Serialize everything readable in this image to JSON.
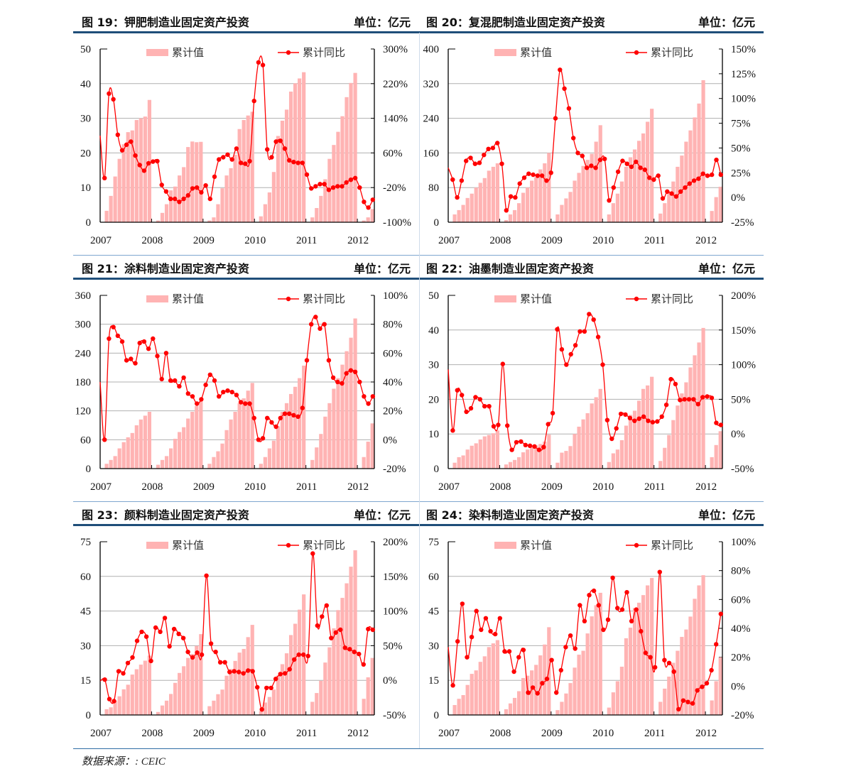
{
  "source": "数据来源：: CEIC",
  "chart_data": [
    {
      "type": "bar+line",
      "title": "图 19：钾肥制造业固定资产投资",
      "unit": "单位：亿元",
      "legend": [
        "累计值",
        "累计同比"
      ],
      "left_axis": {
        "min": 0,
        "max": 50,
        "ticks": [
          "0",
          "10",
          "20",
          "30",
          "40",
          "50"
        ]
      },
      "right_axis": {
        "min": -100,
        "max": 300,
        "ticks": [
          "-100%",
          "-20%",
          "60%",
          "140%",
          "220%",
          "300%"
        ]
      },
      "x_ticks": [
        "2007",
        "2008",
        "2009",
        "2010",
        "2011",
        "2012"
      ],
      "bar_values": {
        "2007": [
          3.3,
          7.6,
          13.2,
          18.3,
          22.5,
          26,
          26.5,
          29.5,
          30,
          30.5,
          35.3
        ],
        "2008": [
          0.5,
          2.7,
          5.2,
          9.2,
          10.3,
          13.5,
          15.9,
          21.7,
          23.3,
          23.1,
          23.2
        ],
        "2009": [
          0.5,
          1.4,
          5.2,
          9.8,
          13.5,
          15.6,
          19.5,
          26.9,
          29.5,
          30.8,
          31.9
        ],
        "2010": [
          1.7,
          5.2,
          8.6,
          14.5,
          24.9,
          29.3,
          32.5,
          37.7,
          40.1,
          41.5,
          43.3
        ],
        "2011": [
          1.4,
          4.1,
          7.6,
          12.4,
          18.3,
          22.3,
          26.1,
          30.6,
          36.1,
          40.2,
          43.1
        ],
        "2012": [
          0.5,
          1.4,
          3.8
        ]
      },
      "line_values": [
        100,
        2,
        197,
        184,
        102,
        66,
        79,
        86,
        54,
        32,
        19,
        36,
        40,
        41,
        -14,
        -29,
        -46,
        -46,
        -53,
        -46,
        -38,
        -22,
        -20,
        -31,
        -15,
        -46,
        5,
        45,
        50,
        56,
        45,
        70,
        37,
        35,
        41,
        180,
        269,
        263,
        68,
        50,
        86,
        88,
        70,
        43,
        39,
        37,
        37,
        10,
        -22,
        -17,
        -12,
        -12,
        -25,
        -20,
        -17,
        -17,
        -8,
        -2,
        2,
        -20,
        -53,
        -66,
        -48
      ]
    },
    {
      "type": "bar+line",
      "title": "图 20：复混肥制造业固定资产投资",
      "unit": "单位：亿元",
      "legend": [
        "累计值",
        "累计同比"
      ],
      "left_axis": {
        "min": 0,
        "max": 400,
        "ticks": [
          "0",
          "80",
          "160",
          "240",
          "320",
          "400"
        ]
      },
      "right_axis": {
        "min": -25,
        "max": 150,
        "ticks": [
          "-25%",
          "0%",
          "25%",
          "50%",
          "75%",
          "100%",
          "125%",
          "150%"
        ]
      },
      "x_ticks": [
        "2007",
        "2008",
        "2009",
        "2010",
        "2011",
        "2012"
      ],
      "bar_values": {
        "2007": [
          18,
          28,
          40,
          56,
          66,
          80,
          91,
          102,
          119,
          128,
          136
        ],
        "2008": [
          5,
          18,
          28,
          44,
          68,
          80,
          96,
          104,
          122,
          136,
          160
        ],
        "2009": [
          18,
          40,
          55,
          70,
          96,
          114,
          130,
          144,
          158,
          186,
          224
        ],
        "2010": [
          18,
          44,
          66,
          94,
          128,
          150,
          168,
          188,
          205,
          232,
          262
        ],
        "2011": [
          20,
          44,
          70,
          94,
          128,
          154,
          186,
          212,
          242,
          274,
          328
        ],
        "2012": [
          26,
          58,
          82
        ]
      },
      "line_values": [
        30,
        18,
        0,
        17,
        37,
        40,
        34,
        35,
        43,
        49,
        50,
        55,
        34,
        -13,
        1,
        0,
        14,
        20,
        24,
        23,
        22,
        22,
        17,
        25,
        80,
        129,
        110,
        90,
        60,
        45,
        42,
        30,
        32,
        30,
        38,
        39,
        -3,
        10,
        26,
        37,
        34,
        31,
        36,
        30,
        28,
        20,
        18,
        22,
        -1,
        6,
        4,
        1,
        6,
        10,
        14,
        17,
        19,
        24,
        22,
        23,
        38,
        23
      ]
    },
    {
      "type": "bar+line",
      "title": "图 21：涂料制造业固定资产投资",
      "unit": "单位：亿元",
      "legend": [
        "累计值",
        "累计同比"
      ],
      "left_axis": {
        "min": 0,
        "max": 360,
        "ticks": [
          "0",
          "60",
          "120",
          "180",
          "240",
          "300",
          "360"
        ]
      },
      "right_axis": {
        "min": -20,
        "max": 100,
        "ticks": [
          "-20%",
          "0%",
          "20%",
          "40%",
          "60%",
          "80%",
          "100%"
        ]
      },
      "x_ticks": [
        "2007",
        "2008",
        "2009",
        "2010",
        "2011",
        "2012"
      ],
      "bar_values": {
        "2007": [
          10,
          18,
          26,
          42,
          55,
          65,
          74,
          90,
          102,
          110,
          118
        ],
        "2008": [
          8,
          18,
          26,
          42,
          62,
          76,
          86,
          104,
          118,
          130,
          140
        ],
        "2009": [
          10,
          24,
          36,
          52,
          80,
          102,
          118,
          136,
          146,
          162,
          178
        ],
        "2010": [
          10,
          24,
          42,
          58,
          88,
          118,
          136,
          155,
          170,
          188,
          214
        ],
        "2011": [
          18,
          44,
          72,
          108,
          136,
          166,
          188,
          216,
          244,
          272,
          312
        ],
        "2012": [
          24,
          56,
          94
        ]
      },
      "line_values": [
        40,
        0,
        70,
        78,
        72,
        68,
        55,
        56,
        53,
        67,
        68,
        63,
        70,
        58,
        42,
        60,
        41,
        41,
        37,
        43,
        32,
        30,
        25,
        28,
        38,
        45,
        41,
        30,
        33,
        34,
        33,
        31,
        26,
        25,
        25,
        15,
        0,
        1,
        15,
        12,
        9,
        15,
        18,
        18,
        17,
        16,
        22,
        55,
        80,
        85,
        77,
        80,
        55,
        43,
        40,
        39,
        46,
        48,
        47,
        40,
        30,
        25,
        30
      ]
    },
    {
      "type": "bar+line",
      "title": "图 22：油墨制造业固定资产投资",
      "unit": "单位：亿元",
      "legend": [
        "累计值",
        "累计同比"
      ],
      "left_axis": {
        "min": 0,
        "max": 50,
        "ticks": [
          "0",
          "10",
          "20",
          "30",
          "40",
          "50"
        ]
      },
      "right_axis": {
        "min": -50,
        "max": 200,
        "ticks": [
          "-50%",
          "0%",
          "50%",
          "100%",
          "150%",
          "200%"
        ]
      },
      "x_ticks": [
        "2007",
        "2008",
        "2009",
        "2010",
        "2011",
        "2012"
      ],
      "bar_values": {
        "2007": [
          1.7,
          3.3,
          3.8,
          5.5,
          6.6,
          7.3,
          8.4,
          9.3,
          9.7,
          10.2,
          11
        ],
        "2008": [
          1.2,
          1.9,
          2.5,
          3.3,
          4.7,
          5.5,
          6.3,
          6.7,
          7.1,
          7.8,
          9.8
        ],
        "2009": [
          1.7,
          4.6,
          5.1,
          6.5,
          10,
          12.1,
          14.2,
          16,
          18.8,
          20.6,
          23
        ],
        "2010": [
          1.9,
          4.4,
          5.5,
          8.2,
          12.4,
          15.5,
          16.7,
          19.6,
          23,
          24,
          26.5
        ],
        "2011": [
          2.2,
          6,
          9.7,
          14,
          18.2,
          21.7,
          24.9,
          29.2,
          32.7,
          36.4,
          40.6
        ],
        "2012": [
          3.3,
          6.8,
          10.8
        ]
      },
      "line_values": [
        93,
        5,
        63,
        56,
        32,
        37,
        53,
        50,
        40,
        40,
        11,
        13,
        101,
        12,
        -23,
        -12,
        -11,
        -16,
        -17,
        -18,
        -23,
        -19,
        14,
        30,
        151,
        122,
        100,
        115,
        128,
        148,
        148,
        173,
        165,
        140,
        100,
        20,
        -7,
        8,
        29,
        28,
        23,
        19,
        22,
        25,
        19,
        17,
        18,
        25,
        42,
        79,
        72,
        49,
        50,
        50,
        50,
        43,
        53,
        54,
        52,
        16,
        13
      ]
    },
    {
      "type": "bar+line",
      "title": "图 23：颜料制造业固定资产投资",
      "unit": "单位：亿元",
      "legend": [
        "累计值",
        "累计同比"
      ],
      "left_axis": {
        "min": 0,
        "max": 75,
        "ticks": [
          "0",
          "15",
          "30",
          "45",
          "60",
          "75"
        ]
      },
      "right_axis": {
        "min": -50,
        "max": 200,
        "ticks": [
          "-50%",
          "0%",
          "50%",
          "100%",
          "150%",
          "200%"
        ]
      },
      "x_ticks": [
        "2007",
        "2008",
        "2009",
        "2010",
        "2011",
        "2012"
      ],
      "bar_values": {
        "2007": [
          2.5,
          3.3,
          6.1,
          8.1,
          11.1,
          13.1,
          17.5,
          19.8,
          21.8,
          23.5,
          25.7
        ],
        "2008": [
          1.3,
          4.1,
          6.2,
          9.1,
          13.9,
          18.2,
          21.1,
          24.7,
          26.4,
          29.9,
          35
        ],
        "2009": [
          3.8,
          6.2,
          9,
          11,
          17,
          19.9,
          23.4,
          27,
          28.6,
          33.7,
          39
        ],
        "2010": [
          1.7,
          5.4,
          7.8,
          11,
          17.1,
          22,
          26.7,
          34.6,
          39.5,
          45.6,
          52.2
        ],
        "2011": [
          5.7,
          9.5,
          14.8,
          22.7,
          29.3,
          37.5,
          45.4,
          50.7,
          57,
          64.2,
          71.3
        ],
        "2012": [
          7,
          16.3,
          24.7
        ]
      },
      "line_values": [
        -1,
        1,
        -27,
        -30,
        13,
        10,
        25,
        33,
        57,
        70,
        63,
        28,
        76,
        70,
        90,
        49,
        74,
        67,
        61,
        41,
        33,
        40,
        37,
        151,
        53,
        41,
        26,
        26,
        12,
        13,
        12,
        10,
        14,
        13,
        -10,
        -42,
        -11,
        -11,
        2,
        9,
        10,
        16,
        30,
        37,
        37,
        35,
        183,
        79,
        92,
        108,
        61,
        69,
        73,
        47,
        45,
        41,
        38,
        23,
        74,
        73
      ]
    },
    {
      "type": "bar+line",
      "title": "图 24：染料制造业固定资产投资",
      "unit": "单位：亿元",
      "legend": [
        "累计值",
        "累计同比"
      ],
      "left_axis": {
        "min": 0,
        "max": 75,
        "ticks": [
          "0",
          "15",
          "30",
          "45",
          "60",
          "75"
        ]
      },
      "right_axis": {
        "min": -20,
        "max": 100,
        "ticks": [
          "-20%",
          "0%",
          "20%",
          "40%",
          "60%",
          "80%",
          "100%"
        ]
      },
      "x_ticks": [
        "2007",
        "2008",
        "2009",
        "2010",
        "2011",
        "2012"
      ],
      "bar_values": {
        "2007": [
          4.3,
          7,
          8.6,
          13,
          17.8,
          19.3,
          23,
          25.4,
          29.4,
          31,
          32.4
        ],
        "2008": [
          2.5,
          5,
          7.4,
          10.3,
          16,
          17,
          19.3,
          21.7,
          25.8,
          30.5,
          38
        ],
        "2009": [
          2.1,
          5.7,
          9.3,
          13.8,
          20.5,
          26.1,
          27.8,
          35.3,
          42.7,
          47.5,
          52.9
        ],
        "2010": [
          3.2,
          9.8,
          14.6,
          20.9,
          33.2,
          37.8,
          46.3,
          48.6,
          51.9,
          56.1,
          59.3
        ],
        "2011": [
          5.7,
          11.4,
          16.6,
          22.6,
          27.8,
          33.8,
          37,
          42.6,
          50.3,
          56.1,
          60.5
        ],
        "2012": [
          6.3,
          14.6,
          25
        ]
      },
      "line_values": [
        27,
        0.5,
        31,
        57,
        20,
        34,
        52,
        39,
        47,
        38,
        36,
        47,
        24,
        24,
        10,
        20,
        25,
        -4.5,
        -1,
        -5,
        2,
        5,
        18,
        -4.5,
        11,
        27,
        35,
        26,
        56,
        45,
        63,
        66,
        56,
        39,
        46,
        75,
        54,
        53,
        65,
        45,
        53,
        38,
        23,
        20,
        13,
        79,
        18,
        16,
        10,
        -16,
        -10,
        -11,
        -12,
        -3,
        -0.5,
        2,
        11,
        29,
        50
      ]
    }
  ],
  "colors": {
    "bar": "#ffb3b3",
    "line": "#ff0000",
    "title_rule": "#1f4e79",
    "grid": "#b0b0b0"
  }
}
